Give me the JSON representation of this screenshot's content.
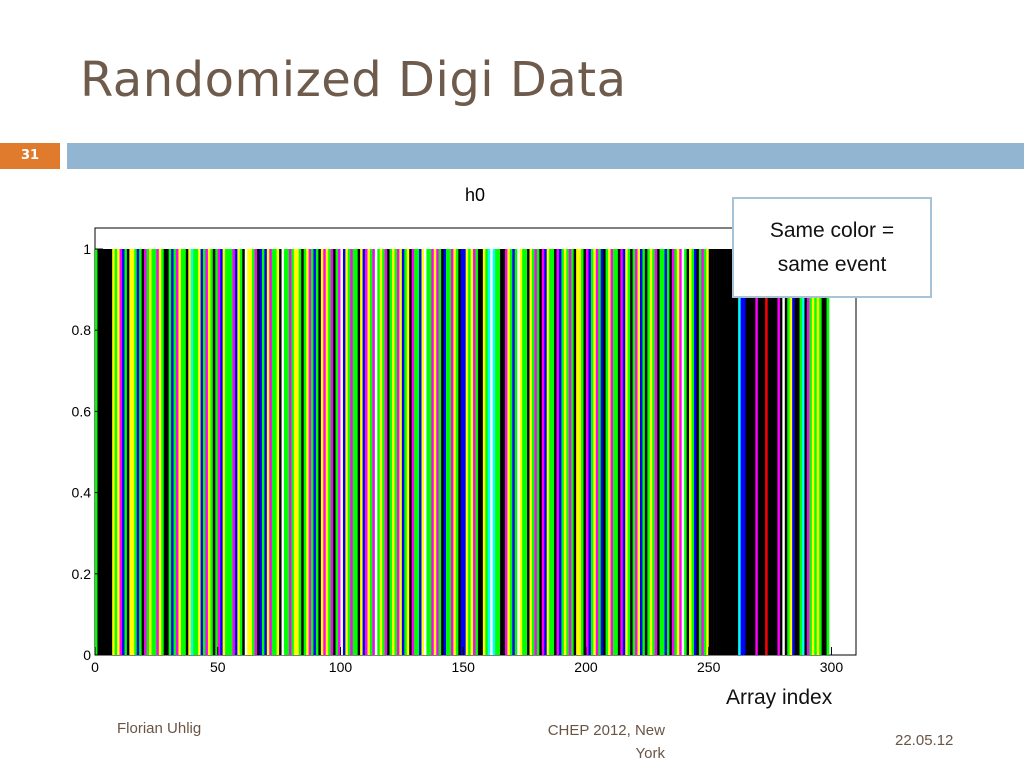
{
  "slide": {
    "title": "Randomized Digi Data",
    "number": "31",
    "callout": "Same color = same event",
    "footer": {
      "author": "Florian Uhlig",
      "event": "CHEP 2012, New York",
      "date": "22.05.12"
    }
  },
  "colors": {
    "title": "#6e5b4c",
    "accent_orange": "#e07b2e",
    "header_bar": "#92b5d1"
  },
  "chart_data": {
    "type": "bar",
    "title": "h0",
    "xlabel": "Array index",
    "ylabel": "",
    "xlim": [
      0,
      310
    ],
    "ylim": [
      0,
      1
    ],
    "xticks": [
      0,
      50,
      100,
      150,
      200,
      250,
      300
    ],
    "yticks": [
      0,
      0.2,
      0.4,
      0.6,
      0.8,
      1
    ],
    "ytick_labels": [
      "0",
      "0.2",
      "0.4",
      "0.6",
      "0.8",
      "1"
    ],
    "grid": false,
    "series_note": "each bin has value 1; bar color identifies the event",
    "palette": [
      "#000000",
      "#00ff00",
      "#ffff00",
      "#0000ff",
      "#ff00ff",
      "#00ffff",
      "#ffffff",
      "#ff0000"
    ],
    "bin_colors": [
      1,
      0,
      0,
      0,
      0,
      0,
      0,
      2,
      1,
      2,
      4,
      3,
      1,
      0,
      2,
      2,
      1,
      3,
      1,
      0,
      4,
      1,
      2,
      1,
      1,
      4,
      2,
      1,
      0,
      0,
      1,
      3,
      1,
      4,
      2,
      1,
      1,
      0,
      2,
      5,
      1,
      1,
      2,
      3,
      1,
      4,
      2,
      1,
      0,
      1,
      4,
      3,
      2,
      1,
      1,
      1,
      4,
      3,
      2,
      1,
      0,
      6,
      2,
      2,
      1,
      4,
      0,
      3,
      1,
      3,
      2,
      4,
      1,
      1,
      2,
      0,
      6,
      1,
      1,
      4,
      1,
      2,
      2,
      1,
      0,
      1,
      2,
      4,
      1,
      3,
      1,
      0,
      2,
      4,
      2,
      1,
      4,
      0,
      1,
      4,
      6,
      3,
      2,
      1,
      4,
      1,
      1,
      0,
      2,
      3,
      4,
      2,
      1,
      4,
      6,
      1,
      2,
      1,
      4,
      0,
      1,
      2,
      1,
      4,
      2,
      3,
      1,
      2,
      0,
      4,
      1,
      1,
      3,
      2,
      6,
      1,
      1,
      4,
      2,
      4,
      1,
      0,
      3,
      1,
      1,
      4,
      2,
      1,
      0,
      3,
      3,
      2,
      1,
      2,
      4,
      1,
      0,
      0,
      2,
      1,
      5,
      6,
      5,
      1,
      1,
      0,
      0,
      4,
      2,
      1,
      3,
      1,
      6,
      2,
      1,
      1,
      0,
      2,
      1,
      4,
      1,
      0,
      4,
      3,
      2,
      1,
      1,
      0,
      4,
      3,
      1,
      2,
      1,
      4,
      1,
      0,
      2,
      2,
      1,
      0,
      4,
      3,
      1,
      2,
      4,
      1,
      3,
      0,
      1,
      2,
      4,
      1,
      1,
      0,
      4,
      3,
      2,
      1,
      0,
      1,
      4,
      2,
      3,
      1,
      0,
      1,
      2,
      1,
      4,
      0,
      1,
      1,
      3,
      1,
      0,
      4,
      1,
      2,
      4,
      6,
      1,
      0,
      2,
      1,
      3,
      0,
      1,
      4,
      1,
      2,
      0,
      0,
      0,
      0,
      0,
      0,
      0,
      0,
      0,
      0,
      0,
      0,
      5,
      3,
      3,
      0,
      0,
      0,
      0,
      4,
      0,
      0,
      0,
      7,
      0,
      0,
      0,
      0,
      4,
      0,
      6,
      0,
      1,
      2,
      3,
      0,
      0,
      1,
      5,
      0,
      4,
      1,
      2,
      1,
      2,
      1,
      0,
      0,
      1
    ]
  }
}
